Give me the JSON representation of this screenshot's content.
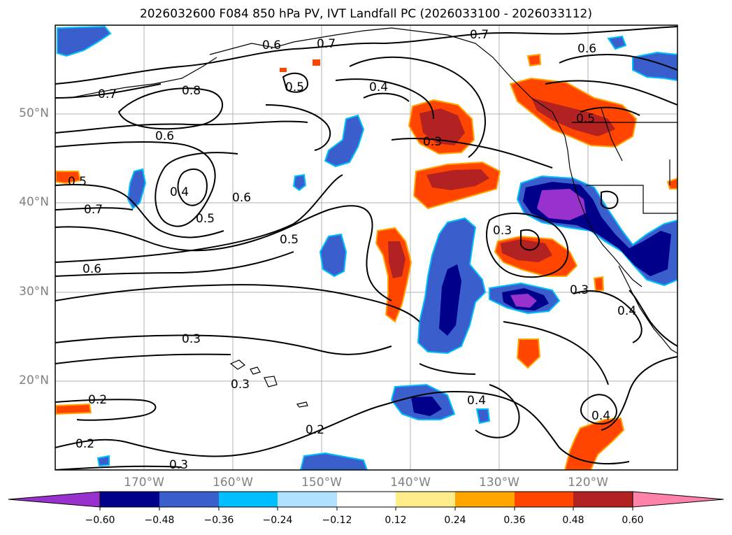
{
  "title": "2026032600 F084 850 hPa PV, IVT Landfall PC (2026033100 - 2026033112)",
  "lat_labels": [
    "50°N",
    "40°N",
    "30°N",
    "20°N"
  ],
  "lon_labels": [
    "170°W",
    "160°W",
    "150°W",
    "140°W",
    "130°W",
    "120°W"
  ],
  "colorbar": {
    "ticks": [
      "−0.60",
      "−0.48",
      "−0.36",
      "−0.24",
      "−0.12",
      "0.12",
      "0.24",
      "0.36",
      "0.48",
      "0.60"
    ],
    "colors": [
      "#9932cc",
      "#00008b",
      "#3a5fcd",
      "#00bfff",
      "#b0e2ff",
      "#ffffff",
      "#ffec8b",
      "#ffa500",
      "#ff4500",
      "#b22222",
      "#ff82ab"
    ]
  },
  "contour_labels": [
    "0.7",
    "0.7",
    "0.6",
    "0.7",
    "0.6",
    "0.8",
    "0.5",
    "0.4",
    "0.3",
    "0.5",
    "0.6",
    "0.5",
    "0.4",
    "0.5",
    "0.6",
    "0.7",
    "0.6",
    "0.5",
    "0.3",
    "0.3",
    "0.3",
    "0.4",
    "0.3",
    "0.2",
    "0.2",
    "0.2",
    "0.4",
    "0.4",
    "0.3"
  ]
}
